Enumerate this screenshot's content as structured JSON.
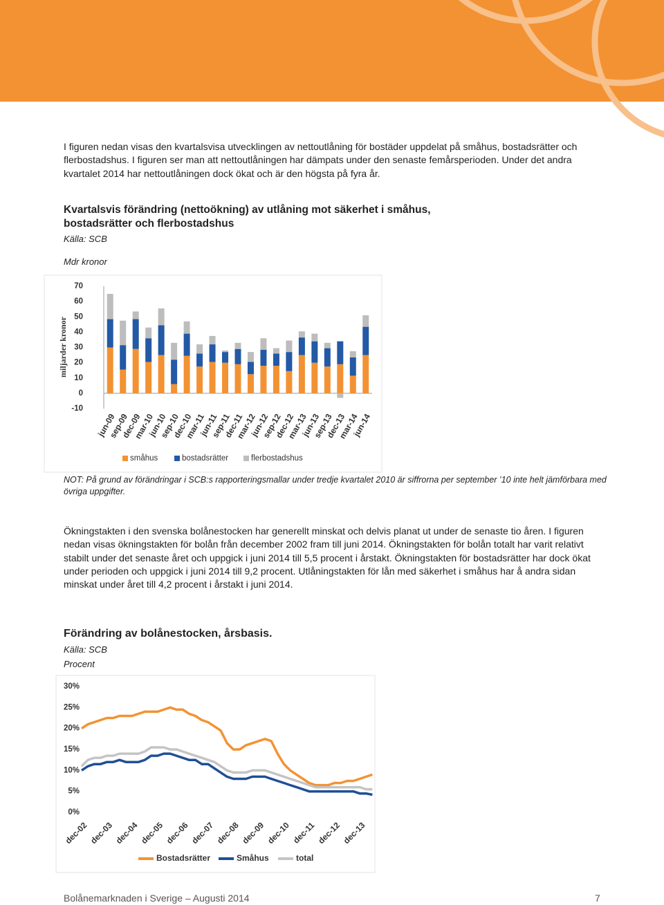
{
  "text": {
    "intro": "I figuren nedan visas den kvartalsvisa utvecklingen av nettoutlåning för bostäder uppdelat på småhus, bostadsrätter och flerbostadshus. I figuren ser man att nettoutlåningen har dämpats under den senaste femårsperioden. Under det andra kvartalet 2014 har nettoutlåningen dock ökat och är den högsta på fyra år.",
    "body": "Ökningstakten i den svenska bolånestocken har generellt minskat och delvis planat ut under de senaste tio åren. I figuren nedan visas ökningstakten för bolån från december 2002 fram till juni 2014. Ökningstakten för bolån totalt har varit relativt stabilt under det senaste året och uppgick i juni 2014 till 5,5 procent i årstakt. Ökningstakten för bostadsrätter har dock ökat under perioden och uppgick i juni 2014 till 9,2 procent. Utlåningstakten för lån med säkerhet i småhus har å andra sidan minskat under året till 4,2 procent i årstakt i juni 2014.",
    "footer": "Bolånemarknaden i Sverige – Augusti 2014",
    "page": "7"
  },
  "chart_data": [
    {
      "type": "stacked-bar",
      "title": "Kvartalsvis förändring (nettoökning) av utlåning mot säkerhet i småhus, bostadsrätter och flerbostadshus",
      "source": "Källa: SCB",
      "unit": "Mdr kronor",
      "y_label": "miljarder kronor",
      "note": "NOT: På grund av förändringar i SCB:s rapporteringsmallar under tredje kvartalet 2010 är siffrorna per september ’10 inte helt jämförbara med övriga uppgifter.",
      "categories": [
        "jun-09",
        "sep-09",
        "dec-09",
        "mar-10",
        "jun-10",
        "sep-10",
        "dec-10",
        "mar-11",
        "jun-11",
        "sep-11",
        "dec-11",
        "mar-12",
        "jun-12",
        "sep-12",
        "dec-12",
        "mar-13",
        "jun-13",
        "sep-13",
        "dec-13",
        "mar-14",
        "jun-14"
      ],
      "series": [
        {
          "name": "småhus",
          "color": "#f39233",
          "values": [
            30,
            15.5,
            29,
            20.5,
            25,
            6,
            24.5,
            17.5,
            20.5,
            20,
            19,
            12.5,
            18,
            18,
            14.5,
            25,
            20,
            17.5,
            19,
            11.5,
            25
          ]
        },
        {
          "name": "bostadsrätter",
          "color": "#2359a5",
          "values": [
            18.5,
            16,
            19.5,
            15.5,
            19.5,
            16,
            14.5,
            8.5,
            11.5,
            7,
            10,
            8,
            10.5,
            8,
            12.5,
            11.5,
            14,
            12,
            15,
            12,
            18.5
          ]
        },
        {
          "name": "flerbostadshus",
          "color": "#bdbdbd",
          "values": [
            16.5,
            16,
            5,
            7,
            11,
            11,
            8,
            6,
            5.5,
            1,
            4,
            6.5,
            7.5,
            3.5,
            7.5,
            4,
            5,
            3.5,
            -3,
            4,
            7.5
          ]
        }
      ],
      "ylim": [
        -10,
        70
      ],
      "yticks": [
        -10,
        0,
        10,
        20,
        30,
        40,
        50,
        60,
        70
      ],
      "grid": false
    },
    {
      "type": "line",
      "title": "Förändring av bolånestocken, årsbasis.",
      "source": "Källa: SCB",
      "unit": "Procent",
      "categories": [
        "dec-02",
        null,
        null,
        null,
        "dec-03",
        null,
        null,
        null,
        "dec-04",
        null,
        null,
        null,
        "dec-05",
        null,
        null,
        null,
        "dec-06",
        null,
        null,
        null,
        "dec-07",
        null,
        null,
        null,
        "dec-08",
        null,
        null,
        null,
        "dec-09",
        null,
        null,
        null,
        "dec-10",
        null,
        null,
        null,
        "dec-11",
        null,
        null,
        null,
        "dec-12",
        null,
        null,
        null,
        "dec-13",
        null,
        null
      ],
      "series": [
        {
          "name": "Bostadsrätter",
          "color": "#f39233",
          "values": [
            20,
            21,
            21.5,
            22,
            22.5,
            22.5,
            23,
            23,
            23,
            23.5,
            24,
            24,
            24,
            24.5,
            25,
            24.5,
            24.5,
            23.5,
            23,
            22,
            21.5,
            20.5,
            19.5,
            16.5,
            15,
            15,
            16,
            16.5,
            17,
            17.5,
            17,
            14,
            11.5,
            10,
            9,
            8,
            7,
            6.5,
            6.5,
            6.5,
            7,
            7,
            7.5,
            7.5,
            8,
            8.5,
            9
          ]
        },
        {
          "name": "Småhus",
          "color": "#1f4f96",
          "values": [
            10,
            11,
            11.5,
            11.5,
            12,
            12,
            12.5,
            12,
            12,
            12,
            12.5,
            13.5,
            13.5,
            14,
            14,
            13.5,
            13,
            12.5,
            12.5,
            11.5,
            11.5,
            10.5,
            9.5,
            8.5,
            8,
            8,
            8,
            8.5,
            8.5,
            8.5,
            8,
            7.5,
            7,
            6.5,
            6,
            5.5,
            5,
            5,
            5,
            5,
            5,
            5,
            5,
            5,
            4.5,
            4.5,
            4.2
          ]
        },
        {
          "name": "total",
          "color": "#c4c4c4",
          "values": [
            11,
            12.5,
            13,
            13,
            13.5,
            13.5,
            14,
            14,
            14,
            14,
            14.5,
            15.5,
            15.5,
            15.5,
            15,
            15,
            14.5,
            14,
            13.5,
            13,
            12.5,
            12,
            11,
            10,
            9.5,
            9.5,
            9.5,
            10,
            10,
            10,
            9.5,
            9,
            8.5,
            8,
            7.5,
            7,
            6.5,
            6,
            6,
            6,
            6,
            6,
            6,
            6,
            6,
            5.5,
            5.5
          ]
        }
      ],
      "ylim": [
        0,
        30
      ],
      "yticks": [
        {
          "value": 0,
          "label": "0%"
        },
        {
          "value": 5,
          "label": "5%"
        },
        {
          "value": 10,
          "label": "10%"
        },
        {
          "value": 15,
          "label": "15%"
        },
        {
          "value": 20,
          "label": "20%"
        },
        {
          "value": 25,
          "label": "25%"
        },
        {
          "value": 30,
          "label": "30%"
        }
      ],
      "grid": false
    }
  ]
}
